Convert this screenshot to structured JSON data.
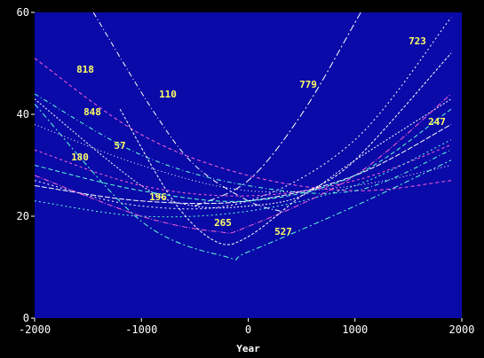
{
  "chart_data": {
    "type": "line",
    "title": "",
    "xlabel": "Year",
    "ylabel": "",
    "xlim": [
      -2000,
      2000
    ],
    "ylim": [
      0,
      60
    ],
    "xticks": [
      -2000,
      -1000,
      0,
      1000,
      2000
    ],
    "yticks": [
      0,
      20,
      40,
      60
    ],
    "grid": false,
    "legend": "none",
    "colors": {
      "background": "#000000",
      "plot_area": "#0a0aa8",
      "white": "#ffffff",
      "magenta": "#ff5fd7",
      "cyan": "#5fffd7",
      "label": "#ffff66"
    },
    "series": [
      {
        "label": "818",
        "x": [
          -2000,
          -1000,
          0,
          1000,
          1900
        ],
        "y": [
          51,
          36,
          28,
          25,
          27
        ]
      },
      {
        "label": "110",
        "x": [
          -1450,
          -900,
          -500,
          0,
          300
        ],
        "y": [
          60,
          41,
          30,
          23,
          21
        ]
      },
      {
        "label": "779",
        "x": [
          -500,
          0,
          500,
          1000,
          1050
        ],
        "y": [
          22,
          27,
          40,
          58,
          60
        ]
      },
      {
        "label": "848",
        "x": [
          -2000,
          -1000,
          0,
          1000,
          1900
        ],
        "y": [
          44,
          32,
          26,
          25,
          33
        ]
      },
      {
        "label": "57",
        "x": [
          -2000,
          -1000,
          -500,
          0,
          500,
          1000,
          1900
        ],
        "y": [
          43,
          26,
          22,
          22,
          24,
          31,
          43
        ]
      },
      {
        "label": "723",
        "x": [
          -2000,
          -1000,
          0,
          1000,
          1900
        ],
        "y": [
          27,
          22,
          23,
          35,
          59
        ]
      },
      {
        "label": "247",
        "x": [
          -2000,
          -1000,
          0,
          1000,
          1900
        ],
        "y": [
          26,
          23,
          23,
          28,
          38
        ]
      },
      {
        "label": "180",
        "x": [
          -2000,
          -1000,
          0,
          1000,
          1900
        ],
        "y": [
          33,
          26,
          24,
          27,
          34
        ]
      },
      {
        "label": "196",
        "x": [
          -2000,
          -1000,
          0,
          1000,
          1900
        ],
        "y": [
          23,
          20,
          21,
          26,
          35
        ]
      },
      {
        "label": "265",
        "x": [
          -2000,
          -1000,
          -300,
          0,
          1000,
          1900
        ],
        "y": [
          28,
          20,
          17,
          18,
          28,
          44
        ]
      },
      {
        "label": "527",
        "x": [
          -2000,
          -1000,
          -200,
          0,
          1000,
          1900
        ],
        "y": [
          42,
          19,
          12,
          13,
          22,
          31
        ]
      },
      {
        "label": "",
        "x": [
          -1200,
          -700,
          -300,
          0,
          500,
          1000,
          1900
        ],
        "y": [
          41,
          23,
          15,
          16,
          24,
          31,
          52
        ]
      },
      {
        "label": "",
        "x": [
          -2000,
          -1000,
          0,
          1000,
          1900
        ],
        "y": [
          30,
          25,
          23,
          28,
          41
        ]
      },
      {
        "label": "",
        "x": [
          -2000,
          -1000,
          0,
          1000,
          1900
        ],
        "y": [
          38,
          30,
          25,
          26,
          30
        ]
      }
    ]
  }
}
